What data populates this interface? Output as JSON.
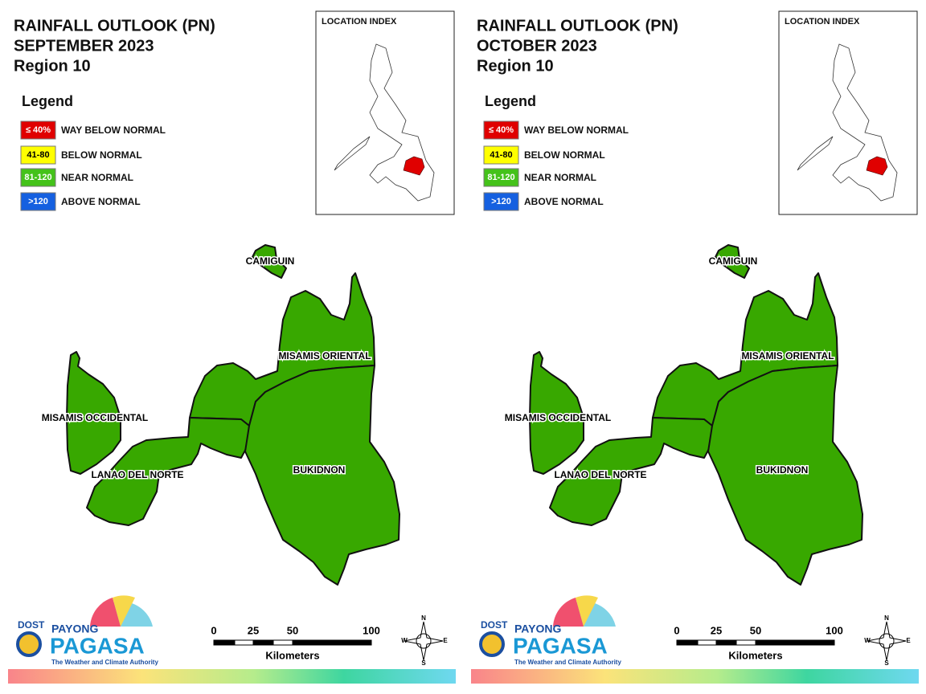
{
  "panels": [
    {
      "title": [
        "RAINFALL OUTLOOK (PN)",
        "SEPTEMBER 2023",
        "Region 10"
      ],
      "legend": {
        "title": "Legend",
        "items": [
          {
            "range": "≤ 40%",
            "label": "WAY BELOW NORMAL",
            "color": "#e00000"
          },
          {
            "range": "41-80",
            "label": "BELOW NORMAL",
            "color": "#ffff00"
          },
          {
            "range": "81-120",
            "label": "NEAR NORMAL",
            "color": "#44c21a"
          },
          {
            "range": ">120",
            "label": "ABOVE NORMAL",
            "color": "#1560e0"
          }
        ]
      },
      "location_index": "LOCATION INDEX",
      "regions": [
        {
          "name": "CAMIGUIN",
          "color": "#38a800"
        },
        {
          "name": "MISAMIS ORIENTAL",
          "color": "#38a800"
        },
        {
          "name": "MISAMIS OCCIDENTAL",
          "color": "#38a800"
        },
        {
          "name": "LANAO DEL NORTE",
          "color": "#38a800"
        },
        {
          "name": "BUKIDNON",
          "color": "#38a800"
        }
      ],
      "scale": {
        "ticks": [
          "0",
          "25",
          "50",
          "100"
        ],
        "unit": "Kilometers"
      },
      "compass": [
        "N",
        "E",
        "S",
        "W"
      ],
      "logo": {
        "dost": "DOST",
        "payong": "PAYONG",
        "pagasa": "PAGASA",
        "tagline": "The Weather and Climate Authority"
      }
    },
    {
      "title": [
        "RAINFALL OUTLOOK (PN)",
        "OCTOBER 2023",
        "Region 10"
      ],
      "legend": {
        "title": "Legend",
        "items": [
          {
            "range": "≤ 40%",
            "label": "WAY BELOW NORMAL",
            "color": "#e00000"
          },
          {
            "range": "41-80",
            "label": "BELOW NORMAL",
            "color": "#ffff00"
          },
          {
            "range": "81-120",
            "label": "NEAR NORMAL",
            "color": "#44c21a"
          },
          {
            "range": ">120",
            "label": "ABOVE NORMAL",
            "color": "#1560e0"
          }
        ]
      },
      "location_index": "LOCATION INDEX",
      "regions": [
        {
          "name": "CAMIGUIN",
          "color": "#38a800"
        },
        {
          "name": "MISAMIS ORIENTAL",
          "color": "#38a800"
        },
        {
          "name": "MISAMIS OCCIDENTAL",
          "color": "#38a800"
        },
        {
          "name": "LANAO DEL NORTE",
          "color": "#38a800"
        },
        {
          "name": "BUKIDNON",
          "color": "#38a800"
        }
      ],
      "scale": {
        "ticks": [
          "0",
          "25",
          "50",
          "100"
        ],
        "unit": "Kilometers"
      },
      "compass": [
        "N",
        "E",
        "S",
        "W"
      ],
      "logo": {
        "dost": "DOST",
        "payong": "PAYONG",
        "pagasa": "PAGASA",
        "tagline": "The Weather and Climate Authority"
      }
    }
  ]
}
